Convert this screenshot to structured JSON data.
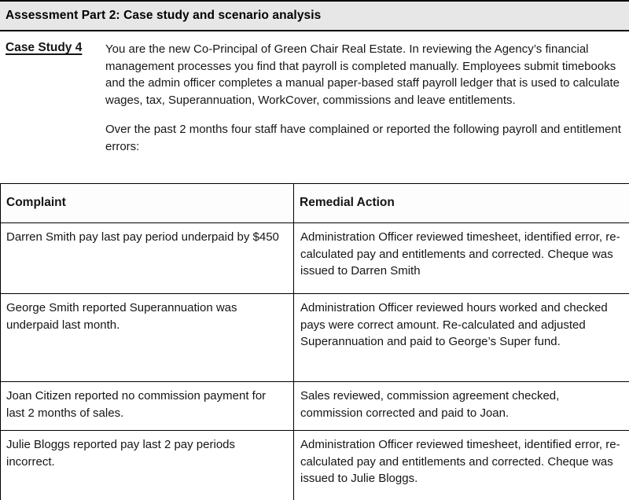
{
  "page": {
    "title": "Assessment Part 2: Case study and scenario analysis"
  },
  "case_study": {
    "label": "Case Study 4",
    "paragraphs": [
      "You are the new Co-Principal of Green Chair Real Estate. In reviewing the Agency’s financial management processes you find that payroll is completed manually. Employees submit timebooks and the admin officer completes a manual paper-based staff payroll ledger that is used to calculate wages, tax, Superannuation, WorkCover, commissions and leave entitlements.",
      "Over the past 2 months four staff have complained or reported the following payroll and entitlement errors:"
    ]
  },
  "table": {
    "columns": [
      "Complaint",
      "Remedial Action"
    ],
    "rows": [
      {
        "complaint": "Darren Smith pay last pay period underpaid by $450",
        "remedial_action": "Administration Officer reviewed timesheet, identified error, re-calculated pay and entitlements and corrected. Cheque was issued to Darren Smith"
      },
      {
        "complaint": "George Smith reported Superannuation was underpaid last month.",
        "remedial_action": "Administration Officer reviewed hours worked and checked pays were correct amount. Re-calculated and adjusted Superannuation and paid to George’s Super fund."
      },
      {
        "complaint": "Joan Citizen reported no commission payment for last 2 months of sales.",
        "remedial_action": "Sales reviewed, commission agreement checked, commission corrected and paid to Joan."
      },
      {
        "complaint": "Julie Bloggs reported pay last 2 pay periods incorrect.",
        "remedial_action": "Administration Officer reviewed timesheet, identified error, re-calculated pay and entitlements and corrected. Cheque was issued to Julie Bloggs."
      }
    ]
  },
  "colors": {
    "title_bar_bg": "#e7e7e7",
    "border": "#000000",
    "text": "#151515"
  }
}
